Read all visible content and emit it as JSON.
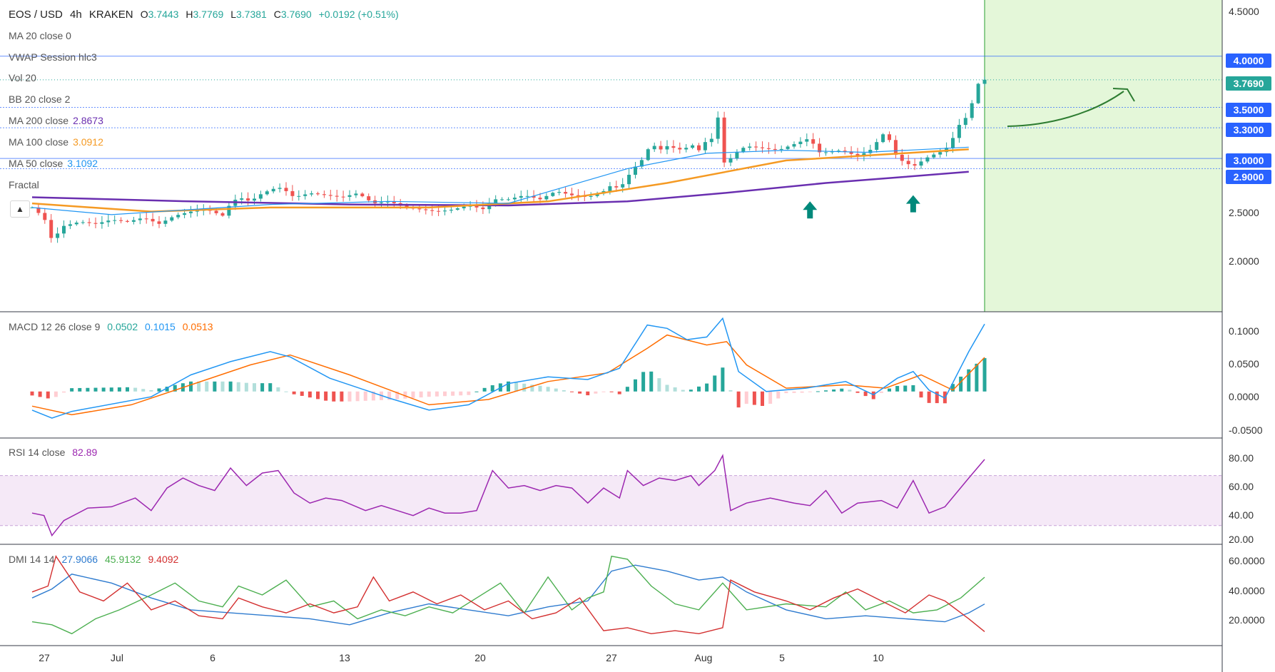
{
  "header": {
    "symbol": "EOS / USD",
    "interval": "4h",
    "exchange": "KRAKEN",
    "ohlc": {
      "o_label": "O",
      "o": "3.7443",
      "h_label": "H",
      "h": "3.7769",
      "l_label": "L",
      "l": "3.7381",
      "c_label": "C",
      "c": "3.7690",
      "change": "+0.0192 (+0.51%)"
    }
  },
  "indicators": {
    "ma20": "MA 20 close 0",
    "vwap": "VWAP Session hlc3",
    "vol": "Vol 20",
    "bb": "BB 20 close 2",
    "ma200": {
      "label": "MA 200 close",
      "value": "2.8673"
    },
    "ma100": {
      "label": "MA 100 close",
      "value": "3.0912"
    },
    "ma50": {
      "label": "MA 50 close",
      "value": "3.1092"
    },
    "fractal": "Fractal"
  },
  "macd_legend": {
    "label": "MACD 12 26 close 9",
    "hist": "0.0502",
    "macd": "0.1015",
    "signal": "0.0513"
  },
  "rsi_legend": {
    "label": "RSI 14 close",
    "value": "82.89"
  },
  "dmi_legend": {
    "label": "DMI 14 14",
    "adx": "27.9066",
    "plus": "45.9132",
    "minus": "9.4092"
  },
  "colors": {
    "up": "#26a69a",
    "down": "#ef5350",
    "ma200": "#6a2fb0",
    "ma100": "#f59a23",
    "ma50": "#2196f3",
    "macd": "#2196f3",
    "signal": "#ff6d00",
    "rsi": "#9c27b0",
    "adx": "#2e7bcf",
    "plus_di": "#4caf50",
    "minus_di": "#d32f2f",
    "highlight": "#e4f7d9",
    "arrow": "#00897b",
    "curve": "#2e7d32"
  },
  "chart_data": {
    "type": "candlestick",
    "x_tick_labels": [
      "27",
      "Jul",
      "6",
      "13",
      "20",
      "27",
      "Aug",
      "5",
      "10"
    ],
    "price_axis": {
      "range": [
        1.5,
        4.55
      ],
      "ticks": [
        "4.5000",
        "2.5000",
        "2.0000"
      ],
      "level_labels": [
        "4.0000",
        "3.5000",
        "3.3000",
        "3.0000",
        "2.9000"
      ],
      "current_price": "3.7690"
    },
    "horizontal_levels": [
      4.0,
      3.5,
      3.3,
      3.0,
      2.9
    ],
    "macd_axis": {
      "range": [
        -0.07,
        0.12
      ],
      "ticks": [
        "0.1000",
        "0.0500",
        "0.0000",
        "-0.0500"
      ]
    },
    "rsi_axis": {
      "range": [
        15,
        100
      ],
      "ticks": [
        "80.00",
        "60.00",
        "40.00",
        "20.00"
      ],
      "band": [
        30,
        70
      ]
    },
    "dmi_axis": {
      "range": [
        0,
        68
      ],
      "ticks": [
        "60.0000",
        "40.0000",
        "20.0000"
      ]
    },
    "series": {
      "close": [
        [
          0,
          2.52
        ],
        [
          3,
          2.42
        ],
        [
          5,
          2.2
        ],
        [
          8,
          2.34
        ],
        [
          12,
          2.38
        ],
        [
          16,
          2.36
        ],
        [
          20,
          2.4
        ],
        [
          24,
          2.38
        ],
        [
          28,
          2.42
        ],
        [
          32,
          2.36
        ],
        [
          36,
          2.44
        ],
        [
          40,
          2.48
        ],
        [
          44,
          2.5
        ],
        [
          48,
          2.44
        ],
        [
          50,
          2.56
        ],
        [
          52,
          2.62
        ],
        [
          55,
          2.58
        ],
        [
          58,
          2.66
        ],
        [
          62,
          2.72
        ],
        [
          64,
          2.68
        ],
        [
          66,
          2.62
        ],
        [
          70,
          2.66
        ],
        [
          74,
          2.64
        ],
        [
          78,
          2.62
        ],
        [
          82,
          2.66
        ],
        [
          86,
          2.56
        ],
        [
          90,
          2.58
        ],
        [
          94,
          2.52
        ],
        [
          98,
          2.5
        ],
        [
          102,
          2.48
        ],
        [
          106,
          2.5
        ],
        [
          110,
          2.54
        ],
        [
          114,
          2.5
        ],
        [
          116,
          2.6
        ],
        [
          120,
          2.6
        ],
        [
          124,
          2.64
        ],
        [
          128,
          2.6
        ],
        [
          132,
          2.68
        ],
        [
          136,
          2.64
        ],
        [
          140,
          2.62
        ],
        [
          144,
          2.68
        ],
        [
          146,
          2.74
        ],
        [
          148,
          2.7
        ],
        [
          150,
          2.82
        ],
        [
          152,
          2.92
        ],
        [
          154,
          3.0
        ],
        [
          156,
          3.15
        ],
        [
          158,
          3.08
        ],
        [
          160,
          3.12
        ],
        [
          162,
          3.1
        ],
        [
          164,
          3.08
        ],
        [
          166,
          3.14
        ],
        [
          168,
          3.08
        ],
        [
          170,
          3.18
        ],
        [
          172,
          3.2
        ],
        [
          173,
          3.45
        ],
        [
          174,
          2.95
        ],
        [
          176,
          3.0
        ],
        [
          178,
          3.08
        ],
        [
          180,
          3.12
        ],
        [
          184,
          3.1
        ],
        [
          188,
          3.08
        ],
        [
          192,
          3.14
        ],
        [
          196,
          3.2
        ],
        [
          198,
          3.06
        ],
        [
          200,
          3.06
        ],
        [
          204,
          3.08
        ],
        [
          208,
          3.02
        ],
        [
          212,
          3.1
        ],
        [
          214,
          3.25
        ],
        [
          216,
          3.18
        ],
        [
          218,
          3.0
        ],
        [
          222,
          2.92
        ],
        [
          226,
          3.02
        ],
        [
          230,
          3.08
        ],
        [
          232,
          3.2
        ],
        [
          234,
          3.36
        ],
        [
          236,
          3.42
        ],
        [
          238,
          3.72
        ],
        [
          240,
          3.77
        ]
      ],
      "ma200": [
        [
          0,
          2.62
        ],
        [
          40,
          2.58
        ],
        [
          80,
          2.55
        ],
        [
          120,
          2.54
        ],
        [
          150,
          2.58
        ],
        [
          174,
          2.66
        ],
        [
          200,
          2.76
        ],
        [
          220,
          2.82
        ],
        [
          236,
          2.87
        ]
      ],
      "ma100": [
        [
          0,
          2.56
        ],
        [
          30,
          2.48
        ],
        [
          60,
          2.52
        ],
        [
          100,
          2.52
        ],
        [
          130,
          2.58
        ],
        [
          160,
          2.76
        ],
        [
          190,
          2.98
        ],
        [
          215,
          3.04
        ],
        [
          236,
          3.09
        ]
      ],
      "ma50": [
        [
          0,
          2.52
        ],
        [
          20,
          2.45
        ],
        [
          60,
          2.55
        ],
        [
          90,
          2.58
        ],
        [
          120,
          2.56
        ],
        [
          150,
          2.9
        ],
        [
          170,
          3.05
        ],
        [
          190,
          3.08
        ],
        [
          210,
          3.06
        ],
        [
          236,
          3.11
        ]
      ],
      "macd": [
        [
          0,
          -0.028
        ],
        [
          5,
          -0.04
        ],
        [
          10,
          -0.03
        ],
        [
          30,
          -0.008
        ],
        [
          40,
          0.025
        ],
        [
          50,
          0.045
        ],
        [
          60,
          0.06
        ],
        [
          65,
          0.052
        ],
        [
          75,
          0.02
        ],
        [
          90,
          -0.01
        ],
        [
          100,
          -0.028
        ],
        [
          110,
          -0.02
        ],
        [
          120,
          0.012
        ],
        [
          130,
          0.022
        ],
        [
          140,
          0.018
        ],
        [
          148,
          0.035
        ],
        [
          155,
          0.1
        ],
        [
          160,
          0.095
        ],
        [
          165,
          0.078
        ],
        [
          170,
          0.082
        ],
        [
          174,
          0.11
        ],
        [
          178,
          0.03
        ],
        [
          185,
          0.0
        ],
        [
          195,
          0.005
        ],
        [
          205,
          0.015
        ],
        [
          212,
          -0.005
        ],
        [
          218,
          0.02
        ],
        [
          222,
          0.03
        ],
        [
          226,
          0.002
        ],
        [
          230,
          -0.01
        ],
        [
          236,
          0.06
        ],
        [
          240,
          0.1015
        ]
      ],
      "signal": [
        [
          0,
          -0.022
        ],
        [
          10,
          -0.035
        ],
        [
          25,
          -0.02
        ],
        [
          40,
          0.01
        ],
        [
          55,
          0.04
        ],
        [
          65,
          0.055
        ],
        [
          80,
          0.025
        ],
        [
          100,
          -0.02
        ],
        [
          115,
          -0.012
        ],
        [
          130,
          0.015
        ],
        [
          145,
          0.028
        ],
        [
          155,
          0.065
        ],
        [
          160,
          0.085
        ],
        [
          170,
          0.07
        ],
        [
          175,
          0.075
        ],
        [
          180,
          0.04
        ],
        [
          190,
          0.005
        ],
        [
          205,
          0.01
        ],
        [
          215,
          0.005
        ],
        [
          224,
          0.025
        ],
        [
          232,
          0.002
        ],
        [
          240,
          0.0513
        ]
      ],
      "rsi": [
        [
          0,
          40
        ],
        [
          3,
          38
        ],
        [
          5,
          22
        ],
        [
          8,
          34
        ],
        [
          14,
          44
        ],
        [
          20,
          45
        ],
        [
          26,
          52
        ],
        [
          30,
          42
        ],
        [
          34,
          60
        ],
        [
          38,
          68
        ],
        [
          42,
          62
        ],
        [
          46,
          58
        ],
        [
          50,
          76
        ],
        [
          54,
          62
        ],
        [
          58,
          72
        ],
        [
          62,
          74
        ],
        [
          66,
          56
        ],
        [
          70,
          48
        ],
        [
          74,
          52
        ],
        [
          78,
          50
        ],
        [
          84,
          42
        ],
        [
          88,
          46
        ],
        [
          92,
          42
        ],
        [
          96,
          38
        ],
        [
          100,
          44
        ],
        [
          104,
          40
        ],
        [
          108,
          40
        ],
        [
          112,
          42
        ],
        [
          116,
          74
        ],
        [
          120,
          60
        ],
        [
          124,
          62
        ],
        [
          128,
          58
        ],
        [
          132,
          62
        ],
        [
          136,
          60
        ],
        [
          140,
          48
        ],
        [
          144,
          60
        ],
        [
          148,
          52
        ],
        [
          150,
          74
        ],
        [
          154,
          62
        ],
        [
          158,
          68
        ],
        [
          162,
          66
        ],
        [
          166,
          70
        ],
        [
          168,
          62
        ],
        [
          172,
          74
        ],
        [
          174,
          86
        ],
        [
          176,
          42
        ],
        [
          180,
          48
        ],
        [
          186,
          52
        ],
        [
          192,
          48
        ],
        [
          196,
          46
        ],
        [
          200,
          58
        ],
        [
          204,
          40
        ],
        [
          208,
          48
        ],
        [
          214,
          50
        ],
        [
          218,
          44
        ],
        [
          222,
          66
        ],
        [
          226,
          40
        ],
        [
          230,
          45
        ],
        [
          236,
          68
        ],
        [
          240,
          82.89
        ]
      ],
      "adx": [
        [
          0,
          32
        ],
        [
          5,
          38
        ],
        [
          10,
          48
        ],
        [
          20,
          42
        ],
        [
          30,
          32
        ],
        [
          40,
          24
        ],
        [
          50,
          22
        ],
        [
          60,
          20
        ],
        [
          70,
          18
        ],
        [
          80,
          14
        ],
        [
          90,
          22
        ],
        [
          100,
          28
        ],
        [
          110,
          24
        ],
        [
          120,
          20
        ],
        [
          130,
          26
        ],
        [
          140,
          30
        ],
        [
          146,
          50
        ],
        [
          152,
          54
        ],
        [
          160,
          50
        ],
        [
          168,
          44
        ],
        [
          174,
          46
        ],
        [
          180,
          36
        ],
        [
          190,
          24
        ],
        [
          200,
          18
        ],
        [
          210,
          20
        ],
        [
          220,
          18
        ],
        [
          230,
          16
        ],
        [
          236,
          22
        ],
        [
          240,
          27.9066
        ]
      ],
      "plus_di": [
        [
          0,
          16
        ],
        [
          5,
          14
        ],
        [
          10,
          8
        ],
        [
          16,
          18
        ],
        [
          22,
          24
        ],
        [
          30,
          34
        ],
        [
          36,
          42
        ],
        [
          42,
          30
        ],
        [
          48,
          26
        ],
        [
          52,
          40
        ],
        [
          58,
          34
        ],
        [
          64,
          44
        ],
        [
          70,
          26
        ],
        [
          76,
          30
        ],
        [
          82,
          18
        ],
        [
          88,
          24
        ],
        [
          94,
          20
        ],
        [
          100,
          26
        ],
        [
          106,
          22
        ],
        [
          112,
          32
        ],
        [
          118,
          42
        ],
        [
          124,
          22
        ],
        [
          130,
          46
        ],
        [
          136,
          24
        ],
        [
          140,
          32
        ],
        [
          144,
          36
        ],
        [
          146,
          60
        ],
        [
          150,
          58
        ],
        [
          156,
          40
        ],
        [
          162,
          28
        ],
        [
          168,
          24
        ],
        [
          174,
          42
        ],
        [
          180,
          24
        ],
        [
          190,
          28
        ],
        [
          200,
          26
        ],
        [
          205,
          36
        ],
        [
          210,
          24
        ],
        [
          216,
          30
        ],
        [
          222,
          22
        ],
        [
          228,
          24
        ],
        [
          234,
          32
        ],
        [
          240,
          45.9132
        ]
      ],
      "minus_di": [
        [
          0,
          36
        ],
        [
          4,
          40
        ],
        [
          6,
          60
        ],
        [
          12,
          36
        ],
        [
          18,
          30
        ],
        [
          24,
          42
        ],
        [
          30,
          24
        ],
        [
          36,
          30
        ],
        [
          42,
          20
        ],
        [
          48,
          18
        ],
        [
          52,
          32
        ],
        [
          58,
          26
        ],
        [
          64,
          22
        ],
        [
          70,
          28
        ],
        [
          76,
          22
        ],
        [
          82,
          26
        ],
        [
          86,
          46
        ],
        [
          90,
          30
        ],
        [
          96,
          36
        ],
        [
          102,
          28
        ],
        [
          108,
          34
        ],
        [
          114,
          24
        ],
        [
          120,
          30
        ],
        [
          126,
          18
        ],
        [
          132,
          22
        ],
        [
          138,
          32
        ],
        [
          144,
          10
        ],
        [
          150,
          12
        ],
        [
          156,
          8
        ],
        [
          162,
          10
        ],
        [
          168,
          8
        ],
        [
          174,
          12
        ],
        [
          176,
          44
        ],
        [
          182,
          36
        ],
        [
          190,
          30
        ],
        [
          196,
          24
        ],
        [
          202,
          32
        ],
        [
          208,
          38
        ],
        [
          214,
          30
        ],
        [
          220,
          22
        ],
        [
          226,
          34
        ],
        [
          230,
          30
        ],
        [
          236,
          18
        ],
        [
          240,
          9.4092
        ]
      ]
    }
  }
}
